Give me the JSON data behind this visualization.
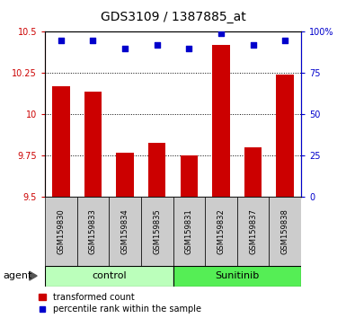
{
  "title": "GDS3109 / 1387885_at",
  "samples": [
    "GSM159830",
    "GSM159833",
    "GSM159834",
    "GSM159835",
    "GSM159831",
    "GSM159832",
    "GSM159837",
    "GSM159838"
  ],
  "bar_values": [
    10.17,
    10.14,
    9.77,
    9.83,
    9.75,
    10.42,
    9.8,
    10.24
  ],
  "percentile_values": [
    95,
    95,
    90,
    92,
    90,
    99,
    92,
    95
  ],
  "ymin": 9.5,
  "ymax": 10.5,
  "yticks": [
    9.5,
    9.75,
    10.0,
    10.25,
    10.5
  ],
  "ytick_labels": [
    "9.5",
    "9.75",
    "10",
    "10.25",
    "10.5"
  ],
  "y2min": 0,
  "y2max": 100,
  "y2ticks": [
    0,
    25,
    50,
    75,
    100
  ],
  "y2tick_labels": [
    "0",
    "25",
    "50",
    "75",
    "100%"
  ],
  "grid_yticks": [
    9.75,
    10.0,
    10.25
  ],
  "bar_color": "#cc0000",
  "dot_color": "#0000cc",
  "control_label": "control",
  "sunitinib_label": "Sunitinib",
  "agent_label": "agent",
  "legend_bar_label": "transformed count",
  "legend_dot_label": "percentile rank within the sample",
  "control_bg_color": "#bbffbb",
  "sunitinib_bg_color": "#55ee55",
  "sample_bg_color": "#cccccc",
  "left_axis_color": "#cc0000",
  "right_axis_color": "#0000cc",
  "title_fontsize": 10,
  "tick_fontsize": 7,
  "sample_fontsize": 6,
  "group_fontsize": 8,
  "legend_fontsize": 7
}
